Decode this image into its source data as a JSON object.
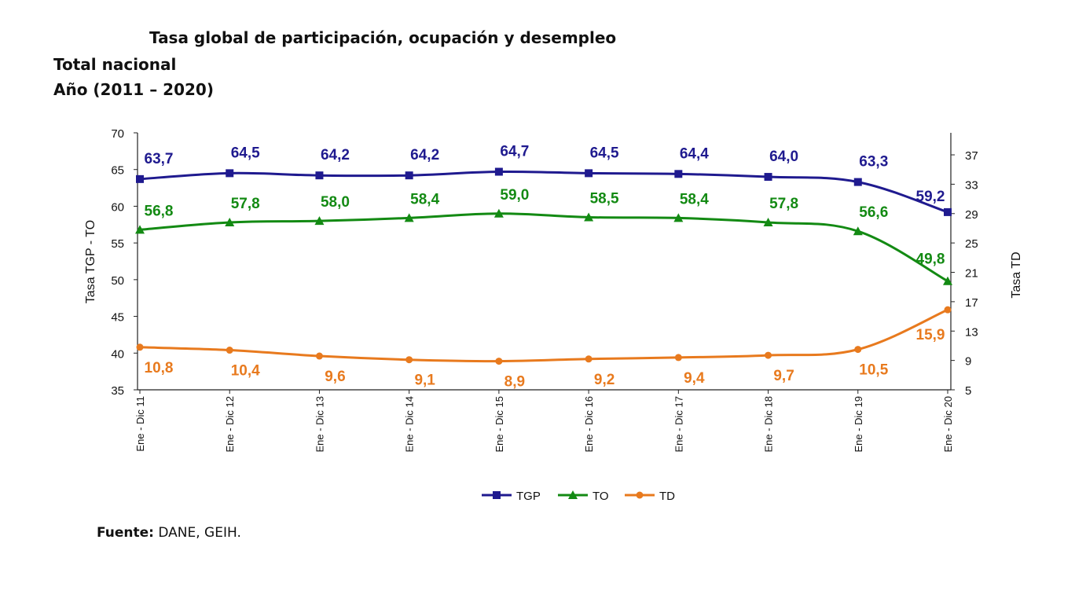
{
  "header": {
    "title": "Tasa global de participación, ocupación y desempleo",
    "subtitle1": "Total nacional",
    "subtitle2": "Año (2011 – 2020)"
  },
  "source": {
    "label": "Fuente:",
    "text": "DANE, GEIH."
  },
  "chart_data": {
    "type": "line",
    "categories": [
      "Ene - Dic 11",
      "Ene - Dic 12",
      "Ene - Dic 13",
      "Ene - Dic 14",
      "Ene - Dic 15",
      "Ene - Dic 16",
      "Ene - Dic 17",
      "Ene - Dic 18",
      "Ene - Dic 19",
      "Ene - Dic 20"
    ],
    "left_axis": {
      "label": "Tasa TGP - TO",
      "min": 35,
      "max": 70,
      "ticks": [
        35,
        40,
        45,
        50,
        55,
        60,
        65,
        70
      ]
    },
    "right_axis": {
      "label": "Tasa TD",
      "min": 5,
      "max": 40,
      "ticks": [
        5,
        9,
        13,
        17,
        21,
        25,
        29,
        33,
        37
      ]
    },
    "series": [
      {
        "name": "TGP",
        "axis": "left",
        "color": "#1f1a8f",
        "marker": "square",
        "values": [
          63.7,
          64.5,
          64.2,
          64.2,
          64.7,
          64.5,
          64.4,
          64.0,
          63.3,
          59.2
        ],
        "labels": [
          "63,7",
          "64,5",
          "64,2",
          "64,2",
          "64,7",
          "64,5",
          "64,4",
          "64,0",
          "63,3",
          "59,2"
        ]
      },
      {
        "name": "TO",
        "axis": "left",
        "color": "#138a13",
        "marker": "triangle",
        "values": [
          56.8,
          57.8,
          58.0,
          58.4,
          59.0,
          58.5,
          58.4,
          57.8,
          56.6,
          49.8
        ],
        "labels": [
          "56,8",
          "57,8",
          "58,0",
          "58,4",
          "59,0",
          "58,5",
          "58,4",
          "57,8",
          "56,6",
          "49,8"
        ]
      },
      {
        "name": "TD",
        "axis": "right",
        "color": "#e87a1e",
        "marker": "circle",
        "values": [
          10.8,
          10.4,
          9.6,
          9.1,
          8.9,
          9.2,
          9.4,
          9.7,
          10.5,
          15.9
        ],
        "labels": [
          "10,8",
          "10,4",
          "9,6",
          "9,1",
          "8,9",
          "9,2",
          "9,4",
          "9,7",
          "10,5",
          "15,9"
        ]
      }
    ],
    "legend": [
      "TGP",
      "TO",
      "TD"
    ]
  }
}
